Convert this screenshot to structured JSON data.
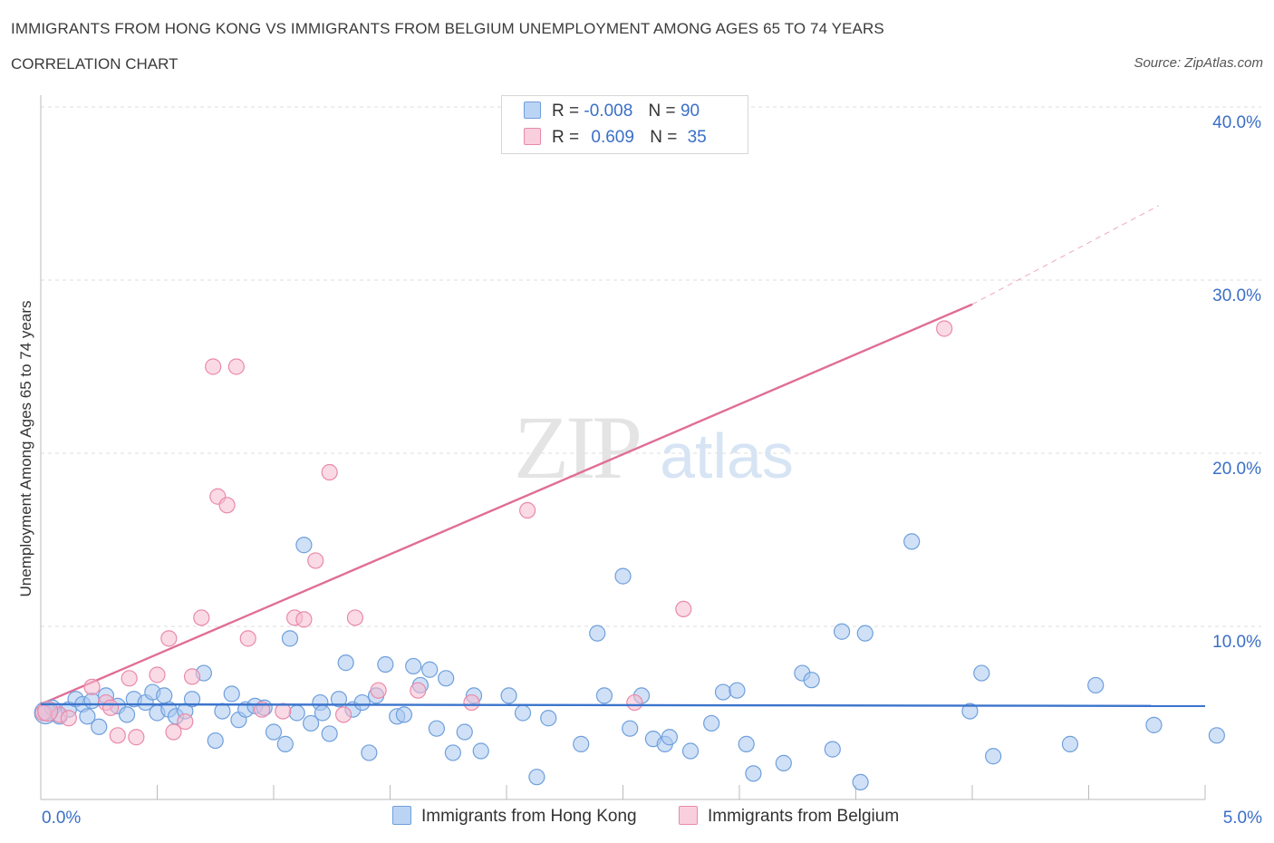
{
  "title": "IMMIGRANTS FROM HONG KONG VS IMMIGRANTS FROM BELGIUM UNEMPLOYMENT AMONG AGES 65 TO 74 YEARS",
  "subtitle": "CORRELATION CHART",
  "source": "Source: ZipAtlas.com",
  "watermark": {
    "zip": "ZIP",
    "atlas": "atlas"
  },
  "colors": {
    "blue_fill": "#aac8f0",
    "blue_stroke": "#6f9fdc",
    "blue_line": "#3b74cc",
    "pink_fill": "#f6bcd0",
    "pink_stroke": "#e98aab",
    "pink_line": "#e06e97",
    "axis_text": "#3a6fc7",
    "grid": "#dcdcdc"
  },
  "legend": {
    "r_label": "R =",
    "n_label": "N =",
    "series": [
      {
        "name": "Immigrants from Hong Kong",
        "r": "-0.008",
        "n": "90"
      },
      {
        "name": "Immigrants from Belgium",
        "r": "0.609",
        "n": "35"
      }
    ]
  },
  "chart_data": {
    "type": "scatter",
    "title": "IMMIGRANTS FROM HONG KONG VS IMMIGRANTS FROM BELGIUM UNEMPLOYMENT AMONG AGES 65 TO 74 YEARS",
    "xlabel": "",
    "ylabel": "Unemployment Among Ages 65 to 74 years",
    "xlim": [
      0,
      5
    ],
    "ylim": [
      0,
      40
    ],
    "x_tick_labels": [
      "0.0%",
      "5.0%"
    ],
    "y_ticks": [
      10,
      20,
      30,
      40
    ],
    "y_tick_labels": [
      "10.0%",
      "20.0%",
      "30.0%",
      "40.0%"
    ],
    "grid": true,
    "legend_position": "top-center",
    "series": [
      {
        "name": "Immigrants from Hong Kong",
        "trend": {
          "x": [
            0,
            5
          ],
          "y": [
            5.5,
            5.4
          ]
        },
        "points": [
          [
            0.02,
            5.0
          ],
          [
            0.05,
            5.3
          ],
          [
            0.08,
            4.8
          ],
          [
            0.12,
            5.2
          ],
          [
            0.15,
            5.8
          ],
          [
            0.18,
            5.5
          ],
          [
            0.22,
            5.7
          ],
          [
            0.25,
            4.2
          ],
          [
            0.28,
            6.0
          ],
          [
            0.33,
            5.4
          ],
          [
            0.37,
            4.9
          ],
          [
            0.4,
            5.8
          ],
          [
            0.45,
            5.6
          ],
          [
            0.48,
            6.2
          ],
          [
            0.5,
            5.0
          ],
          [
            0.55,
            5.2
          ],
          [
            0.58,
            4.8
          ],
          [
            0.62,
            5.1
          ],
          [
            0.65,
            5.8
          ],
          [
            0.7,
            7.3
          ],
          [
            0.75,
            3.4
          ],
          [
            0.78,
            5.1
          ],
          [
            0.82,
            6.1
          ],
          [
            0.85,
            4.6
          ],
          [
            0.88,
            5.2
          ],
          [
            0.92,
            5.4
          ],
          [
            0.96,
            5.3
          ],
          [
            1.0,
            3.9
          ],
          [
            1.05,
            3.2
          ],
          [
            1.07,
            9.3
          ],
          [
            1.1,
            5.0
          ],
          [
            1.13,
            14.7
          ],
          [
            1.16,
            4.4
          ],
          [
            1.2,
            5.6
          ],
          [
            1.24,
            3.8
          ],
          [
            1.28,
            5.8
          ],
          [
            1.31,
            7.9
          ],
          [
            1.34,
            5.2
          ],
          [
            1.38,
            5.6
          ],
          [
            1.41,
            2.7
          ],
          [
            1.44,
            6.0
          ],
          [
            1.48,
            7.8
          ],
          [
            1.53,
            4.8
          ],
          [
            1.56,
            4.9
          ],
          [
            1.6,
            7.7
          ],
          [
            1.63,
            6.6
          ],
          [
            1.67,
            7.5
          ],
          [
            1.7,
            4.1
          ],
          [
            1.74,
            7.0
          ],
          [
            1.77,
            2.7
          ],
          [
            1.82,
            3.9
          ],
          [
            1.86,
            6.0
          ],
          [
            1.89,
            2.8
          ],
          [
            2.01,
            6.0
          ],
          [
            2.07,
            5.0
          ],
          [
            2.13,
            1.3
          ],
          [
            2.18,
            4.7
          ],
          [
            2.32,
            3.2
          ],
          [
            2.39,
            9.6
          ],
          [
            2.42,
            6.0
          ],
          [
            2.5,
            12.9
          ],
          [
            2.53,
            4.1
          ],
          [
            2.58,
            6.0
          ],
          [
            2.63,
            3.5
          ],
          [
            2.68,
            3.2
          ],
          [
            2.7,
            3.6
          ],
          [
            2.79,
            2.8
          ],
          [
            2.88,
            4.4
          ],
          [
            2.93,
            6.2
          ],
          [
            2.99,
            6.3
          ],
          [
            3.03,
            3.2
          ],
          [
            3.06,
            1.5
          ],
          [
            3.19,
            2.1
          ],
          [
            3.27,
            7.3
          ],
          [
            3.31,
            6.9
          ],
          [
            3.4,
            2.9
          ],
          [
            3.44,
            9.7
          ],
          [
            3.52,
            1.0
          ],
          [
            3.54,
            9.6
          ],
          [
            3.74,
            14.9
          ],
          [
            3.99,
            5.1
          ],
          [
            4.04,
            7.3
          ],
          [
            4.09,
            2.5
          ],
          [
            4.42,
            3.2
          ],
          [
            4.53,
            6.6
          ],
          [
            4.78,
            4.3
          ],
          [
            5.05,
            3.7
          ],
          [
            1.21,
            5.0
          ],
          [
            0.53,
            6.0
          ],
          [
            0.2,
            4.8
          ]
        ]
      },
      {
        "name": "Immigrants from Belgium",
        "trend": {
          "x": [
            0,
            4
          ],
          "y": [
            5.5,
            28.6
          ]
        },
        "trend_extension": {
          "x": [
            4,
            4.8
          ],
          "y": [
            28.6,
            34.3
          ]
        },
        "points": [
          [
            0.01,
            5.0
          ],
          [
            0.08,
            4.9
          ],
          [
            0.12,
            4.7
          ],
          [
            0.22,
            6.5
          ],
          [
            0.28,
            5.6
          ],
          [
            0.3,
            5.3
          ],
          [
            0.33,
            3.7
          ],
          [
            0.38,
            7.0
          ],
          [
            0.41,
            3.6
          ],
          [
            0.5,
            7.2
          ],
          [
            0.55,
            9.3
          ],
          [
            0.57,
            3.9
          ],
          [
            0.62,
            4.5
          ],
          [
            0.65,
            7.1
          ],
          [
            0.69,
            10.5
          ],
          [
            0.74,
            25.0
          ],
          [
            0.76,
            17.5
          ],
          [
            0.8,
            17.0
          ],
          [
            0.84,
            25.0
          ],
          [
            0.89,
            9.3
          ],
          [
            1.04,
            5.1
          ],
          [
            1.09,
            10.5
          ],
          [
            1.13,
            10.4
          ],
          [
            1.18,
            13.8
          ],
          [
            1.24,
            18.9
          ],
          [
            1.3,
            4.9
          ],
          [
            1.35,
            10.5
          ],
          [
            1.45,
            6.3
          ],
          [
            1.62,
            6.3
          ],
          [
            2.09,
            16.7
          ],
          [
            2.55,
            5.6
          ],
          [
            2.76,
            11.0
          ],
          [
            3.88,
            27.2
          ],
          [
            0.95,
            5.2
          ],
          [
            1.85,
            5.6
          ]
        ]
      }
    ]
  }
}
